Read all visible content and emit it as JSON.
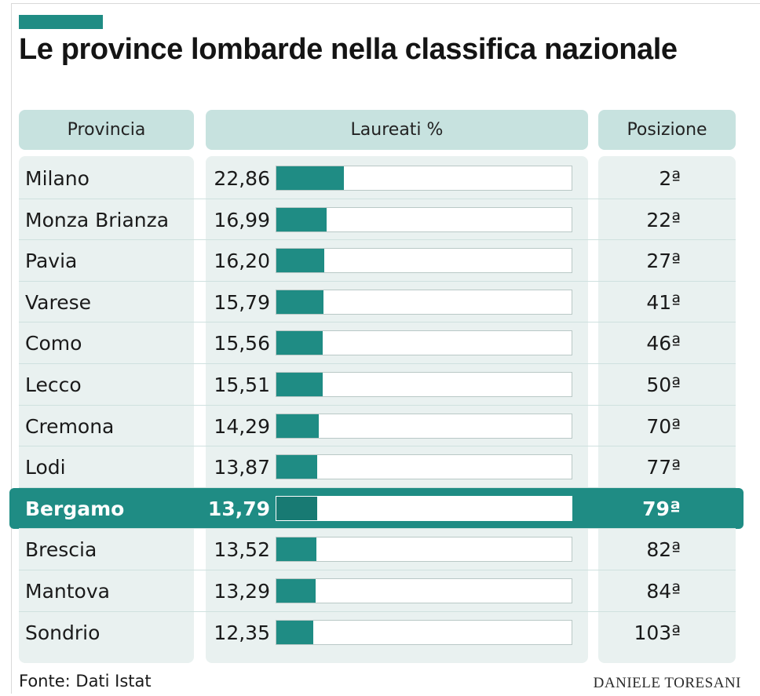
{
  "title": "Le province lombarde nella classifica nazionale",
  "source": "Fonte: Dati Istat",
  "credit": "DANIELE TORESANI",
  "colors": {
    "accent": "#1f8c84",
    "header_bg": "#c7e2df",
    "column_bg": "#e9f1f0",
    "highlight": "#1f8c84"
  },
  "chart_data": {
    "type": "table",
    "title": "Le province lombarde nella classifica nazionale",
    "columns": [
      "Provincia",
      "Laureati %",
      "Posizione"
    ],
    "bar_max": 100,
    "highlight": "Bergamo",
    "rows": [
      {
        "provincia": "Milano",
        "label": "22,86",
        "value": 22.86,
        "posizione": "2ª"
      },
      {
        "provincia": "Monza Brianza",
        "label": "16,99",
        "value": 16.99,
        "posizione": "22ª"
      },
      {
        "provincia": "Pavia",
        "label": "16,20",
        "value": 16.2,
        "posizione": "27ª"
      },
      {
        "provincia": "Varese",
        "label": "15,79",
        "value": 15.79,
        "posizione": "41ª"
      },
      {
        "provincia": "Como",
        "label": "15,56",
        "value": 15.56,
        "posizione": "46ª"
      },
      {
        "provincia": "Lecco",
        "label": "15,51",
        "value": 15.51,
        "posizione": "50ª"
      },
      {
        "provincia": "Cremona",
        "label": "14,29",
        "value": 14.29,
        "posizione": "70ª"
      },
      {
        "provincia": "Lodi",
        "label": "13,87",
        "value": 13.87,
        "posizione": "77ª"
      },
      {
        "provincia": "Bergamo",
        "label": "13,79",
        "value": 13.79,
        "posizione": "79ª"
      },
      {
        "provincia": "Brescia",
        "label": "13,52",
        "value": 13.52,
        "posizione": "82ª"
      },
      {
        "provincia": "Mantova",
        "label": "13,29",
        "value": 13.29,
        "posizione": "84ª"
      },
      {
        "provincia": "Sondrio",
        "label": "12,35",
        "value": 12.35,
        "posizione": "103ª"
      }
    ]
  }
}
